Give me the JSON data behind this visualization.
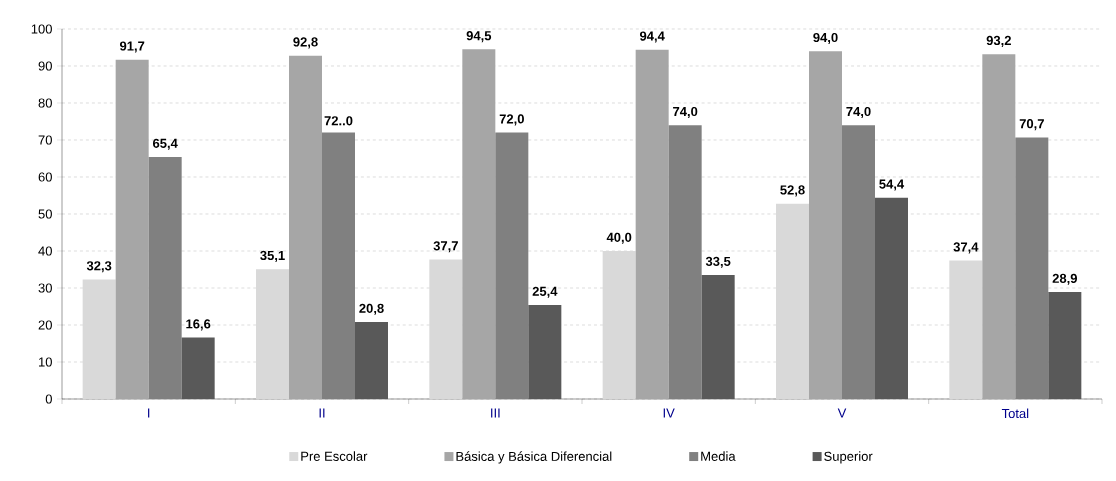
{
  "chart_data": {
    "type": "bar",
    "categories": [
      "I",
      "II",
      "III",
      "IV",
      "V",
      "Total"
    ],
    "series": [
      {
        "name": "Pre Escolar",
        "color": "#d9d9d9",
        "values": [
          32.3,
          35.1,
          37.7,
          40.0,
          52.8,
          37.4
        ],
        "value_labels": [
          "32,3",
          "35,1",
          "37,7",
          "40,0",
          "52,8",
          "37,4"
        ]
      },
      {
        "name": "Básica y Básica Diferencial",
        "color": "#a6a6a6",
        "values": [
          91.7,
          92.8,
          94.5,
          94.4,
          94.0,
          93.2
        ],
        "value_labels": [
          "91,7",
          "92,8",
          "94,5",
          "94,4",
          "94,0",
          "93,2"
        ]
      },
      {
        "name": "Media",
        "color": "#808080",
        "values": [
          65.4,
          72.0,
          72.0,
          74.0,
          74.0,
          70.7
        ],
        "value_labels": [
          "65,4",
          "72..0",
          "72,0",
          "74,0",
          "74,0",
          "70,7"
        ]
      },
      {
        "name": "Superior",
        "color": "#595959",
        "values": [
          16.6,
          20.8,
          25.4,
          33.5,
          54.4,
          28.9
        ],
        "value_labels": [
          "16,6",
          "20,8",
          "25,4",
          "33,5",
          "54,4",
          "28,9"
        ]
      }
    ],
    "ylim": [
      0,
      100
    ],
    "yticks": [
      0,
      10,
      20,
      30,
      40,
      50,
      60,
      70,
      80,
      90,
      100
    ],
    "grid": "y",
    "legend": "bottom"
  }
}
